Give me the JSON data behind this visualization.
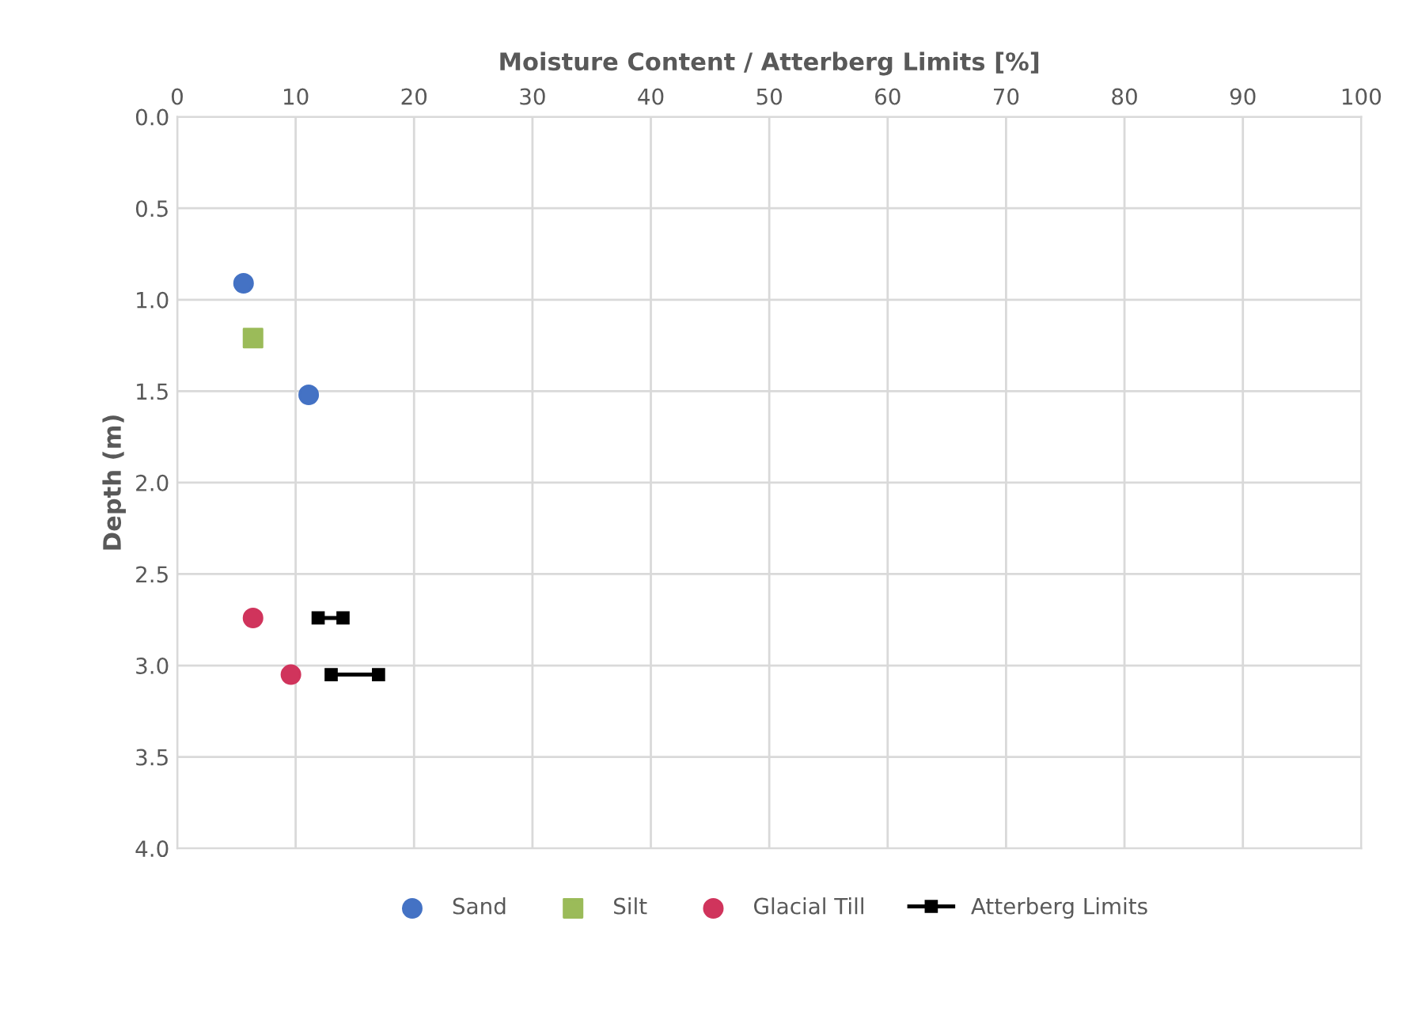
{
  "chart_data": {
    "type": "scatter",
    "xlabel": "Moisture Content / Atterberg Limits [%]",
    "ylabel": "Depth (m)",
    "xlim": [
      0,
      100
    ],
    "xticks": [
      0,
      10,
      20,
      30,
      40,
      50,
      60,
      70,
      80,
      90,
      100
    ],
    "ylim": [
      4.0,
      0.0
    ],
    "yticks": [
      {
        "value": 0,
        "label": "0.0"
      },
      {
        "value": 0.5,
        "label": "0.5"
      },
      {
        "value": 1,
        "label": "1.0"
      },
      {
        "value": 1.5,
        "label": "1.5"
      },
      {
        "value": 2,
        "label": "2.0"
      },
      {
        "value": 2.5,
        "label": "2.5"
      },
      {
        "value": 3,
        "label": "3.0"
      },
      {
        "value": 3.5,
        "label": "3.5"
      },
      {
        "value": 4,
        "label": "4.0"
      }
    ],
    "grid": true,
    "legend": "bottom",
    "series": [
      {
        "name": "Sand",
        "color": "#4472c4",
        "marker": "circle",
        "x": [
          5.6,
          11.1
        ],
        "values": [
          0.91,
          1.52
        ]
      },
      {
        "name": "Silt",
        "color": "#9bbb59",
        "marker": "square",
        "x": [
          6.4
        ],
        "values": [
          1.21
        ]
      },
      {
        "name": "Glacial Till",
        "color": "#d0345c",
        "marker": "circle",
        "x": [
          6.4,
          9.6
        ],
        "values": [
          2.74,
          3.05
        ]
      },
      {
        "name": "Atterberg Limits",
        "type": "line",
        "color": "#000000",
        "marker": "square",
        "x": [
          11.9,
          14.0,
          null,
          13.0,
          17.0
        ],
        "values": [
          2.74,
          2.74,
          null,
          3.05,
          3.05
        ]
      }
    ]
  }
}
